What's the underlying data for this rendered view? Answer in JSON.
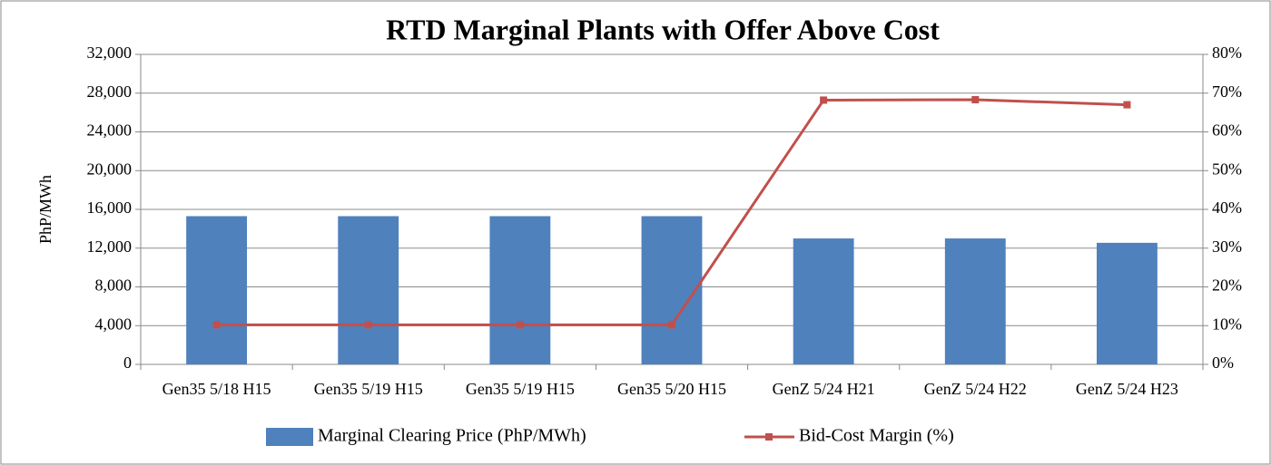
{
  "chart_data": {
    "type": "bar_line",
    "title": "RTD Marginal Plants with Offer Above Cost",
    "y_label": "PhP/MWh",
    "categories": [
      "Gen35 5/18 H15",
      "Gen35 5/19 H15",
      "Gen35 5/19 H15",
      "Gen35 5/20 H15",
      "GenZ 5/24 H21",
      "GenZ 5/24 H22",
      "GenZ 5/24 H23"
    ],
    "series": [
      {
        "name": "Marginal Clearing Price (PhP/MWh)",
        "type": "bar",
        "color": "#4f81bd",
        "values": [
          15300,
          15300,
          15300,
          15300,
          13000,
          13000,
          12550
        ]
      },
      {
        "name": "Bid-Cost Margin (%)",
        "type": "line",
        "axis": "y2",
        "color": "#c0504d",
        "values": [
          10.2,
          10.2,
          10.2,
          10.2,
          68.2,
          68.3,
          67.0
        ]
      }
    ],
    "ylim": [
      0,
      32000
    ],
    "yticks": [
      0,
      {
        "value": 4000,
        "label": "4,000"
      },
      {
        "value": 8000,
        "label": "8,000"
      },
      {
        "value": 12000,
        "label": "12,000"
      },
      {
        "value": 16000,
        "label": "16,000"
      },
      {
        "value": 20000,
        "label": "20,000"
      },
      {
        "value": 24000,
        "label": "24,000"
      },
      {
        "value": 28000,
        "label": "28,000"
      },
      {
        "value": 32000,
        "label": "32,000"
      }
    ],
    "y2lim": [
      0,
      80
    ],
    "y2ticks": [
      {
        "value": 0,
        "label": "0%"
      },
      {
        "value": 10,
        "label": "10%"
      },
      {
        "value": 20,
        "label": "20%"
      },
      {
        "value": 30,
        "label": "30%"
      },
      {
        "value": 40,
        "label": "40%"
      },
      {
        "value": 50,
        "label": "50%"
      },
      {
        "value": 60,
        "label": "60%"
      },
      {
        "value": 70,
        "label": "70%"
      },
      {
        "value": 80,
        "label": "80%"
      }
    ],
    "grid": true,
    "legend": "bottom"
  }
}
